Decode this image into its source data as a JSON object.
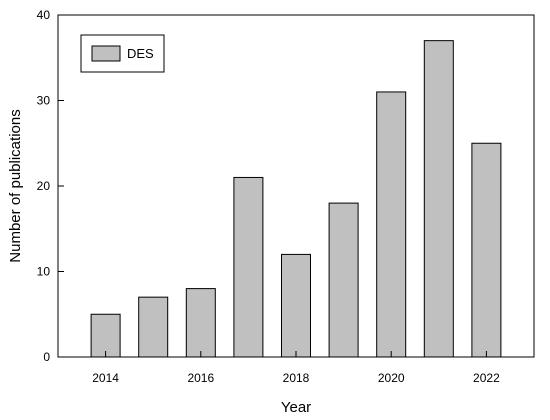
{
  "chart_data": {
    "type": "bar",
    "xlabel": "Year",
    "ylabel": "Number of publications",
    "categories": [
      "2014",
      "2015",
      "2016",
      "2017",
      "2018",
      "2019",
      "2020",
      "2021",
      "2022"
    ],
    "x_tick_labels": [
      "2014",
      "2016",
      "2018",
      "2020",
      "2022"
    ],
    "y_tick_labels": [
      "0",
      "10",
      "20",
      "30",
      "40"
    ],
    "ylim": [
      0,
      40
    ],
    "series": [
      {
        "name": "DES",
        "values": [
          5,
          7,
          8,
          21,
          12,
          18,
          31,
          37,
          25
        ]
      }
    ],
    "bar_color": "#c0c0c0",
    "legend": {
      "position": "top-left",
      "label": "DES"
    },
    "grid": false
  }
}
